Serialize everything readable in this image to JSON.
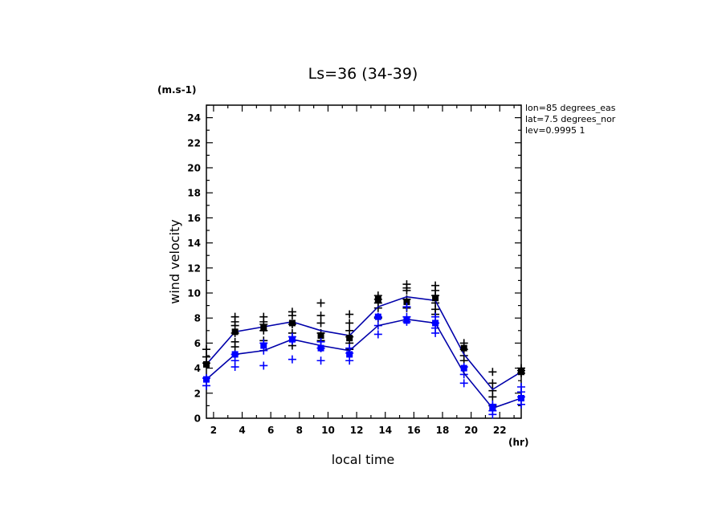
{
  "chart_data": {
    "type": "line",
    "title": "Ls=36 (34-39)",
    "xlabel": "local time",
    "ylabel": "wind velocity",
    "x_unit": "(hr)",
    "y_unit": "(m.s-1)",
    "xlim": [
      1.5,
      23.5
    ],
    "ylim": [
      0,
      25
    ],
    "x_ticks": [
      2,
      4,
      6,
      8,
      10,
      12,
      14,
      16,
      18,
      20,
      22
    ],
    "x_tick_labels": [
      "2",
      "4",
      "6",
      "8",
      "10",
      "12",
      "14",
      "16",
      "18",
      "20",
      "22"
    ],
    "y_ticks": [
      0,
      2,
      4,
      6,
      8,
      10,
      12,
      14,
      16,
      18,
      20,
      22,
      24
    ],
    "y_tick_labels": [
      "0",
      "2",
      "4",
      "6",
      "8",
      "10",
      "12",
      "14",
      "16",
      "18",
      "20",
      "22",
      "24"
    ],
    "annotation_lines": [
      "lon=85 degrees_eas",
      "lat=7.5 degrees_nor",
      "lev=0.9995 1"
    ],
    "x": [
      1.5,
      3.5,
      5.5,
      7.5,
      9.5,
      11.5,
      13.5,
      15.5,
      17.5,
      19.5,
      21.5,
      23.5
    ],
    "series": [
      {
        "color": "#000000",
        "line_color": "#0000aa",
        "mean": [
          4.3,
          6.9,
          7.3,
          7.7,
          7.0,
          6.6,
          8.9,
          9.7,
          9.4,
          5.1,
          2.3,
          3.7
        ],
        "squares": [
          4.3,
          6.9,
          7.2,
          7.6,
          6.6,
          6.4,
          9.5,
          9.3,
          9.6,
          5.6,
          0.9,
          3.7
        ],
        "crosses": [
          [
            5.5,
            4.9,
            4.4
          ],
          [
            8.1,
            7.7,
            7.4,
            6.8,
            6.1,
            5.7
          ],
          [
            8.1,
            7.7,
            7.5,
            7.0,
            6.2
          ],
          [
            8.5,
            8.2,
            7.5,
            6.8,
            5.8
          ],
          [
            9.2,
            8.2,
            7.6,
            6.8,
            6.2,
            5.6
          ],
          [
            8.3,
            7.6,
            7.0,
            6.5,
            6.0,
            5.5
          ],
          [
            9.8,
            9.5,
            9.2,
            8.8,
            8.0
          ],
          [
            10.7,
            10.4,
            10.2,
            9.5,
            8.8
          ],
          [
            10.6,
            10.2,
            9.8,
            9.2,
            8.7,
            8.3
          ],
          [
            6.0,
            5.5,
            5.0,
            4.6
          ],
          [
            3.7,
            2.8,
            2.2,
            1.7,
            1.0
          ],
          [
            4.0,
            3.8,
            3.6
          ]
        ]
      },
      {
        "color": "#0000ff",
        "line_color": "#0000aa",
        "mean": [
          3.1,
          5.1,
          5.4,
          6.3,
          5.8,
          5.4,
          7.4,
          7.9,
          7.6,
          3.6,
          0.8,
          1.6
        ],
        "squares": [
          3.1,
          5.1,
          5.8,
          6.3,
          5.6,
          5.1,
          8.1,
          7.8,
          7.6,
          4.0,
          0.9,
          1.6
        ],
        "crosses": [
          [
            3.2,
            2.6
          ],
          [
            5.1,
            4.6,
            4.1
          ],
          [
            6.0,
            5.4,
            4.2
          ],
          [
            6.5,
            6.2,
            4.7
          ],
          [
            6.1,
            5.6,
            4.6
          ],
          [
            5.6,
            5.2,
            4.6
          ],
          [
            8.1,
            7.4,
            6.7
          ],
          [
            8.9,
            8.1,
            7.7
          ],
          [
            8.1,
            7.6,
            7.2,
            6.8
          ],
          [
            4.1,
            3.5,
            2.8
          ],
          [
            1.1,
            0.6,
            0.3
          ],
          [
            2.5,
            2.1,
            1.7,
            1.1
          ]
        ]
      }
    ]
  }
}
